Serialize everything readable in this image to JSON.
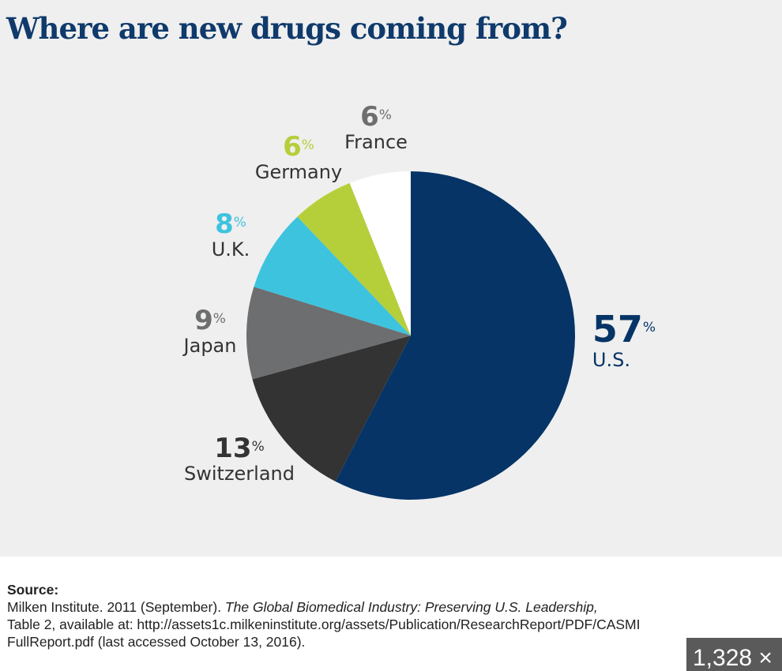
{
  "chart_data": {
    "type": "pie",
    "title": "Where are new drugs coming from?",
    "slices": [
      {
        "label": "U.S.",
        "value": 57,
        "color": "#063466",
        "label_color": "#063466"
      },
      {
        "label": "Switzerland",
        "value": 13,
        "color": "#333333",
        "label_color": "#333333"
      },
      {
        "label": "Japan",
        "value": 9,
        "color": "#6d6e70",
        "label_color": "#6d6e70"
      },
      {
        "label": "U.K.",
        "value": 8,
        "color": "#3ec3de",
        "label_color": "#3ec3de"
      },
      {
        "label": "Germany",
        "value": 6,
        "color": "#b5cf3a",
        "label_color": "#b5cf3a"
      },
      {
        "label": "France",
        "value": 6,
        "color": "#ffffff",
        "label_color": "#6d6e70"
      }
    ],
    "percent_sign": "%"
  },
  "source": {
    "heading": "Source:",
    "line1_plain": "Milken Institute. 2011 (September). ",
    "line1_italic": "The Global Biomedical Industry: Preserving U.S. Leadership,",
    "line2": "Table 2, available at: http://assets1c.milkeninstitute.org/assets/Publication/ResearchReport/PDF/CASMI",
    "line3": "FullReport.pdf (last accessed October 13, 2016)."
  },
  "badge": "1,328 ×"
}
